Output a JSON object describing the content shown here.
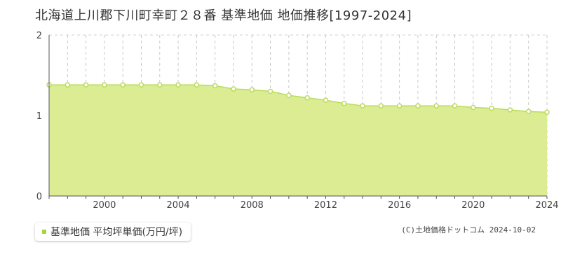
{
  "title": "北海道上川郡下川町幸町２８番 基準地価 地価推移[1997-2024]",
  "legend": {
    "label": "基準地価 平均坪単価(万円/坪)"
  },
  "credit": "(C)土地価格ドットコム 2024-10-02",
  "colors": {
    "fill": "#dcec93",
    "line": "#b9dc5b",
    "marker_stroke": "#b9dc5b",
    "marker_fill": "#ffffff",
    "legend_swatch": "#a6d63d"
  },
  "chart_data": {
    "type": "area",
    "x": [
      1997,
      1998,
      1999,
      2000,
      2001,
      2002,
      2003,
      2004,
      2005,
      2006,
      2007,
      2008,
      2009,
      2010,
      2011,
      2012,
      2013,
      2014,
      2015,
      2016,
      2017,
      2018,
      2019,
      2020,
      2021,
      2022,
      2023,
      2024
    ],
    "series": [
      {
        "values": [
          1.38,
          1.38,
          1.38,
          1.38,
          1.38,
          1.38,
          1.38,
          1.38,
          1.38,
          1.37,
          1.33,
          1.32,
          1.3,
          1.25,
          1.22,
          1.19,
          1.15,
          1.12,
          1.12,
          1.12,
          1.12,
          1.12,
          1.12,
          1.1,
          1.09,
          1.07,
          1.05,
          1.04
        ]
      }
    ],
    "xlim": [
      1997,
      2024
    ],
    "ylim": [
      0,
      2
    ],
    "x_ticks": [
      "2000",
      "2004",
      "2008",
      "2012",
      "2016",
      "2020",
      "2024"
    ],
    "y_ticks": [
      "0",
      "1",
      "2"
    ],
    "grid": true
  }
}
